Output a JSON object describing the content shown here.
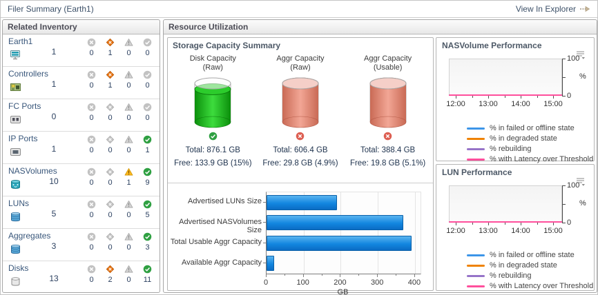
{
  "titlebar": {
    "title": "Filer Summary (Earth1)",
    "action_label": "View In Explorer"
  },
  "related_inventory": {
    "title": "Related Inventory",
    "status_columns": [
      "error",
      "critical",
      "warning",
      "ok"
    ],
    "items": [
      {
        "name": "Earth1",
        "icon": "filer-icon",
        "count": "1",
        "statuses": [
          {
            "type": "error",
            "value": "0",
            "active": false
          },
          {
            "type": "critical",
            "value": "1",
            "active": true
          },
          {
            "type": "warning",
            "value": "0",
            "active": false
          },
          {
            "type": "ok",
            "value": "0",
            "active": false
          }
        ]
      },
      {
        "name": "Controllers",
        "icon": "controller-icon",
        "count": "1",
        "statuses": [
          {
            "type": "error",
            "value": "0",
            "active": false
          },
          {
            "type": "critical",
            "value": "1",
            "active": true
          },
          {
            "type": "warning",
            "value": "0",
            "active": false
          },
          {
            "type": "ok",
            "value": "0",
            "active": false
          }
        ]
      },
      {
        "name": "FC Ports",
        "icon": "fc-port-icon",
        "count": "0",
        "statuses": [
          {
            "type": "error",
            "value": "0",
            "active": false
          },
          {
            "type": "critical",
            "value": "0",
            "active": false
          },
          {
            "type": "warning",
            "value": "0",
            "active": false
          },
          {
            "type": "ok",
            "value": "0",
            "active": false
          }
        ]
      },
      {
        "name": "IP Ports",
        "icon": "ip-port-icon",
        "count": "1",
        "statuses": [
          {
            "type": "error",
            "value": "0",
            "active": false
          },
          {
            "type": "critical",
            "value": "0",
            "active": false
          },
          {
            "type": "warning",
            "value": "0",
            "active": false
          },
          {
            "type": "ok",
            "value": "1",
            "active": true
          }
        ]
      },
      {
        "name": "NASVolumes",
        "icon": "nasvolume-icon",
        "count": "10",
        "statuses": [
          {
            "type": "error",
            "value": "0",
            "active": false
          },
          {
            "type": "critical",
            "value": "0",
            "active": false
          },
          {
            "type": "warning",
            "value": "1",
            "active": true
          },
          {
            "type": "ok",
            "value": "9",
            "active": true
          }
        ]
      },
      {
        "name": "LUNs",
        "icon": "lun-icon",
        "count": "5",
        "statuses": [
          {
            "type": "error",
            "value": "0",
            "active": false
          },
          {
            "type": "critical",
            "value": "0",
            "active": false
          },
          {
            "type": "warning",
            "value": "0",
            "active": false
          },
          {
            "type": "ok",
            "value": "5",
            "active": true
          }
        ]
      },
      {
        "name": "Aggregates",
        "icon": "aggregate-icon",
        "count": "3",
        "statuses": [
          {
            "type": "error",
            "value": "0",
            "active": false
          },
          {
            "type": "critical",
            "value": "0",
            "active": false
          },
          {
            "type": "warning",
            "value": "0",
            "active": false
          },
          {
            "type": "ok",
            "value": "3",
            "active": true
          }
        ]
      },
      {
        "name": "Disks",
        "icon": "disk-icon",
        "count": "13",
        "statuses": [
          {
            "type": "error",
            "value": "0",
            "active": false
          },
          {
            "type": "critical",
            "value": "2",
            "active": true
          },
          {
            "type": "warning",
            "value": "0",
            "active": false
          },
          {
            "type": "ok",
            "value": "11",
            "active": true
          }
        ]
      }
    ]
  },
  "resource_utilization": {
    "title": "Resource Utilization"
  },
  "storage_summary": {
    "title": "Storage Capacity Summary",
    "gauges": [
      {
        "label_line1": "Disk Capacity",
        "label_line2": "(Raw)",
        "total": "Total: 876.1 GB",
        "free": "Free: 133.9 GB (15%)",
        "fill_percent": 85,
        "color": "green",
        "status": "ok"
      },
      {
        "label_line1": "Aggr Capacity",
        "label_line2": "(Raw)",
        "total": "Total: 606.4 GB",
        "free": "Free: 29.8 GB (4.9%)",
        "fill_percent": 100,
        "color": "red",
        "status": "error"
      },
      {
        "label_line1": "Aggr Capacity",
        "label_line2": "(Usable)",
        "total": "Total: 388.4 GB",
        "free": "Free: 19.8 GB (5.1%)",
        "fill_percent": 100,
        "color": "red",
        "status": "error"
      }
    ]
  },
  "chart_data": [
    {
      "id": "storage_capacity_bars",
      "type": "bar",
      "orientation": "horizontal",
      "categories": [
        "Advertised LUNs Size",
        "Advertised NASVolumes Size",
        "Total Usable Aggr Capacity",
        "Available Aggr Capacity"
      ],
      "values": [
        190,
        368,
        390,
        20
      ],
      "xlabel": "GB",
      "xlim": [
        0,
        400
      ],
      "xticks": [
        0,
        100,
        200,
        300,
        400
      ],
      "bar_color": "#1286e0",
      "grid": true
    },
    {
      "id": "nas_performance",
      "type": "line",
      "title": "NASVolume Performance",
      "x": [
        "12:00",
        "13:00",
        "14:00",
        "15:00"
      ],
      "ylim": [
        0,
        100
      ],
      "ylabel": "%",
      "legend_position": "bottom",
      "series": [
        {
          "name": "% in failed or offline state",
          "color": "#3c95e8",
          "values": [
            0,
            0,
            0,
            0
          ]
        },
        {
          "name": "% in degraded state",
          "color": "#ef8200",
          "values": [
            0,
            0,
            0,
            0
          ]
        },
        {
          "name": "% rebuilding",
          "color": "#9673c8",
          "values": [
            0,
            0,
            0,
            0
          ]
        },
        {
          "name": "% with Latency over Threshold",
          "color": "#ff4f9c",
          "values": [
            0,
            0,
            0,
            0
          ]
        }
      ]
    },
    {
      "id": "lun_performance",
      "type": "line",
      "title": "LUN Performance",
      "x": [
        "12:00",
        "13:00",
        "14:00",
        "15:00"
      ],
      "ylim": [
        0,
        100
      ],
      "ylabel": "%",
      "legend_position": "bottom",
      "series": [
        {
          "name": "% in failed or offline state",
          "color": "#3c95e8",
          "values": [
            0,
            0,
            0,
            0
          ]
        },
        {
          "name": "% in degraded state",
          "color": "#ef8200",
          "values": [
            0,
            0,
            0,
            0
          ]
        },
        {
          "name": "% rebuilding",
          "color": "#9673c8",
          "values": [
            0,
            0,
            0,
            0
          ]
        },
        {
          "name": "% with Latency over Threshold",
          "color": "#ff4f9c",
          "values": [
            0,
            0,
            0,
            0
          ]
        }
      ]
    }
  ]
}
